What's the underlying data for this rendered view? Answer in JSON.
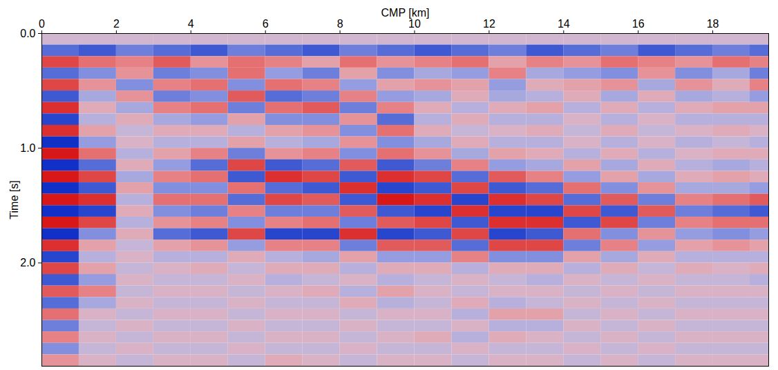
{
  "chart_data": {
    "type": "heatmap",
    "x_label": "CMP [km]",
    "y_label": "Time [s]",
    "xlim": [
      0,
      19.5
    ],
    "ylim": [
      0,
      2.9
    ],
    "xticks": [
      0,
      2,
      4,
      6,
      8,
      10,
      12,
      14,
      16,
      18
    ],
    "yticks": [
      0,
      1,
      2
    ],
    "x_edges": [
      0,
      1,
      2,
      3,
      4,
      5,
      6,
      7,
      8,
      9,
      10,
      11,
      12,
      13,
      14,
      15,
      16,
      17,
      18,
      19,
      19.5
    ],
    "y_edges": [
      0,
      0.1,
      0.2,
      0.3,
      0.4,
      0.5,
      0.6,
      0.7,
      0.8,
      0.9,
      1.0,
      1.1,
      1.2,
      1.3,
      1.4,
      1.5,
      1.6,
      1.7,
      1.8,
      1.9,
      2.0,
      2.1,
      2.2,
      2.3,
      2.4,
      2.5,
      2.6,
      2.7,
      2.8,
      2.9
    ],
    "clim": [
      -1,
      1
    ],
    "cells": [
      [
        0,
        0,
        0,
        0,
        0,
        0,
        0,
        0,
        0,
        0,
        0,
        0,
        0,
        0,
        0,
        0,
        0,
        0,
        0,
        0
      ],
      [
        -0.7,
        -0.8,
        -0.6,
        -0.7,
        -0.8,
        -0.6,
        -0.7,
        -0.8,
        -0.6,
        -0.7,
        -0.8,
        -0.7,
        -0.6,
        -0.8,
        -0.7,
        -0.6,
        -0.8,
        -0.7,
        -0.6,
        -0.7
      ],
      [
        0.8,
        0.6,
        0.5,
        0.7,
        0.4,
        0.6,
        0.5,
        0.3,
        0.6,
        0.4,
        0.5,
        0.6,
        0.3,
        0.5,
        0.4,
        0.6,
        0.5,
        0.4,
        0.6,
        0.5
      ],
      [
        -0.7,
        -0.5,
        0.4,
        -0.6,
        -0.5,
        0.6,
        -0.4,
        -0.6,
        0.3,
        -0.5,
        -0.3,
        -0.4,
        0.5,
        -0.3,
        -0.4,
        -0.5,
        0.4,
        -0.5,
        -0.3,
        -0.6
      ],
      [
        0.8,
        0.4,
        -0.5,
        0.5,
        0.6,
        -0.5,
        0.6,
        0.5,
        -0.4,
        0.3,
        0.4,
        0.3,
        -0.4,
        0.2,
        0.3,
        0.4,
        -0.3,
        0.4,
        0.2,
        0.5
      ],
      [
        -0.8,
        -0.3,
        0.4,
        -0.6,
        -0.5,
        0.7,
        -0.7,
        -0.6,
        0.5,
        -0.4,
        -0.3,
        0.2,
        -0.3,
        -0.2,
        0.2,
        -0.3,
        0.2,
        -0.3,
        -0.2,
        -0.4
      ],
      [
        0.9,
        0.2,
        -0.3,
        0.5,
        0.6,
        -0.6,
        0.6,
        0.7,
        -0.6,
        0.5,
        0.2,
        -0.2,
        0.2,
        0.3,
        -0.2,
        0.2,
        -0.2,
        0.2,
        0.3,
        0.3
      ],
      [
        -0.9,
        -0.2,
        0.2,
        -0.3,
        -0.4,
        0.3,
        -0.5,
        -0.5,
        0.4,
        -0.7,
        -0.2,
        0.2,
        -0.2,
        -0.2,
        0.1,
        -0.2,
        0.1,
        -0.2,
        -0.2,
        -0.2
      ],
      [
        0.9,
        0.3,
        -0.1,
        0.2,
        0.2,
        -0.2,
        0.3,
        0.4,
        -0.5,
        0.6,
        0.2,
        -0.1,
        0.1,
        0.2,
        -0.1,
        0.2,
        -0.1,
        0.1,
        0.2,
        0.1
      ],
      [
        -1,
        -0.4,
        0.1,
        -0.2,
        -0.2,
        0.3,
        -0.2,
        -0.3,
        0.4,
        -0.5,
        -0.3,
        0.2,
        -0.2,
        -0.2,
        0.1,
        -0.2,
        0.1,
        -0.2,
        -0.1,
        -0.2
      ],
      [
        1,
        0.6,
        -0.2,
        0.3,
        0.5,
        -0.6,
        0.4,
        0.5,
        -0.5,
        0.6,
        0.4,
        -0.3,
        0.3,
        0.2,
        -0.2,
        0.2,
        -0.2,
        0.1,
        0.2,
        0.2
      ],
      [
        -1,
        -0.7,
        0.2,
        -0.4,
        -0.7,
        0.8,
        -0.8,
        -0.7,
        0.7,
        -0.8,
        -0.6,
        0.5,
        -0.4,
        -0.3,
        0.3,
        -0.3,
        0.2,
        -0.2,
        -0.3,
        -0.2
      ],
      [
        1,
        0.8,
        -0.3,
        0.5,
        0.6,
        -0.8,
        0.9,
        0.8,
        -0.8,
        0.9,
        0.8,
        -0.7,
        0.7,
        0.5,
        -0.4,
        0.3,
        -0.3,
        0.2,
        0.3,
        0.2
      ],
      [
        -1,
        -0.8,
        0.3,
        -0.5,
        -0.5,
        0.6,
        -0.7,
        -0.8,
        0.9,
        -0.9,
        -0.8,
        0.8,
        -0.8,
        -0.7,
        0.6,
        -0.5,
        0.4,
        -0.3,
        -0.3,
        -0.4
      ],
      [
        1,
        0.9,
        -0.2,
        0.6,
        0.6,
        -0.7,
        0.8,
        0.7,
        -0.8,
        1,
        0.9,
        -0.9,
        0.9,
        0.8,
        -0.7,
        0.7,
        -0.6,
        0.5,
        0.6,
        0.7
      ],
      [
        -1,
        -0.9,
        0.2,
        -0.5,
        -0.6,
        0.5,
        -0.6,
        -0.6,
        0.7,
        -0.8,
        -0.9,
        0.9,
        -0.9,
        -0.9,
        0.8,
        -0.8,
        0.7,
        -0.6,
        -0.7,
        -0.8
      ],
      [
        1,
        0.8,
        -0.2,
        0.4,
        0.5,
        -0.5,
        0.5,
        0.6,
        -0.6,
        0.7,
        0.8,
        -0.8,
        0.9,
        0.9,
        -0.8,
        0.8,
        -0.6,
        0.5,
        0.6,
        0.6
      ],
      [
        -1,
        -0.5,
        0.2,
        -0.7,
        -0.8,
        0.8,
        -0.9,
        -0.9,
        0.9,
        -0.9,
        -0.8,
        0.8,
        -0.9,
        -0.8,
        0.6,
        -0.5,
        0.4,
        -0.4,
        -0.5,
        -0.4
      ],
      [
        0.9,
        0.3,
        -0.1,
        0.3,
        0.4,
        -0.4,
        0.5,
        0.5,
        -0.6,
        0.7,
        0.7,
        -0.7,
        0.8,
        0.8,
        -0.6,
        0.5,
        -0.4,
        0.3,
        0.4,
        0.3
      ],
      [
        -0.9,
        -0.2,
        0.1,
        -0.2,
        -0.2,
        0.2,
        -0.2,
        -0.3,
        0.3,
        -0.4,
        -0.4,
        0.5,
        -0.5,
        -0.5,
        0.3,
        -0.3,
        0.2,
        -0.2,
        -0.2,
        -0.2
      ],
      [
        0.8,
        0.3,
        -0.1,
        0.1,
        0.2,
        -0.1,
        0.2,
        0.2,
        -0.2,
        0.2,
        0.2,
        -0.2,
        0.2,
        0.2,
        -0.2,
        0.2,
        -0.1,
        0.2,
        0.1,
        0.2
      ],
      [
        -0.8,
        -0.4,
        0.1,
        -0.1,
        -0.1,
        0.1,
        -0.2,
        -0.1,
        0.1,
        -0.2,
        -0.1,
        0.1,
        -0.1,
        -0.2,
        0.1,
        -0.1,
        0.1,
        -0.1,
        -0.1,
        -0.2
      ],
      [
        0.7,
        0.5,
        -0.1,
        0.1,
        0.1,
        -0.1,
        0.1,
        0.2,
        -0.2,
        0.3,
        0.1,
        -0.1,
        0.1,
        0.1,
        -0.1,
        0.1,
        -0.1,
        0.1,
        0.1,
        0.1
      ],
      [
        -0.7,
        -0.3,
        0.1,
        -0.1,
        -0.1,
        0.1,
        -0.1,
        -0.1,
        0.2,
        -0.2,
        -0.1,
        0.2,
        -0.2,
        -0.1,
        0.1,
        -0.1,
        0.1,
        -0.1,
        -0.1,
        -0.1
      ],
      [
        0.6,
        0.1,
        -0.1,
        0.1,
        0.1,
        -0.1,
        0.1,
        0.1,
        -0.1,
        0.1,
        0.1,
        -0.2,
        0.3,
        0.3,
        -0.1,
        0.1,
        -0.1,
        0.1,
        0.1,
        0.1
      ],
      [
        -0.6,
        -0.1,
        0.1,
        -0.1,
        -0.1,
        0.1,
        -0.1,
        -0.1,
        0.1,
        -0.1,
        -0.1,
        0.1,
        -0.2,
        -0.2,
        0.1,
        -0.1,
        0.1,
        -0.1,
        -0.1,
        -0.1
      ],
      [
        0.5,
        0.1,
        -0.1,
        0.1,
        0.1,
        -0.1,
        0.1,
        0.1,
        -0.1,
        0.1,
        0.2,
        -0.2,
        0.2,
        0.1,
        -0.1,
        0.1,
        -0.1,
        0.1,
        0.1,
        0.1
      ],
      [
        -0.5,
        -0.1,
        0.1,
        -0.1,
        -0.1,
        0.1,
        -0.1,
        -0.1,
        0.1,
        -0.1,
        -0.1,
        0.1,
        -0.1,
        -0.1,
        0.1,
        -0.1,
        0.1,
        -0.1,
        -0.1,
        -0.1
      ],
      [
        0.4,
        0.1,
        -0.1,
        0.1,
        0.1,
        -0.1,
        0.2,
        0.1,
        -0.1,
        0.1,
        0.1,
        -0.1,
        0.1,
        0.1,
        -0.1,
        0.1,
        -0.1,
        0.1,
        0.1,
        0.1
      ]
    ]
  }
}
